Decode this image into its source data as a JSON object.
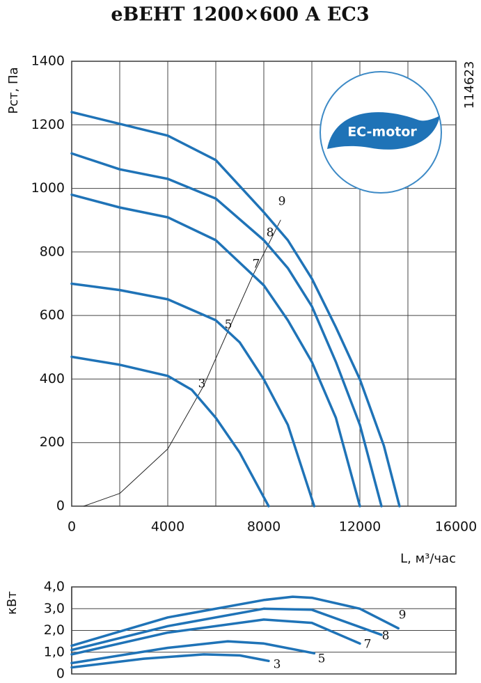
{
  "chart_data": [
    {
      "type": "line",
      "title": "eВЕНТ 1200×600 А ЕС3",
      "ylabel": "Pст, Па",
      "xlabel": "L, м³/час",
      "annotation": "114623",
      "badge": "EC-motor",
      "xlim": [
        0,
        16000
      ],
      "xticks": [
        0,
        4000,
        8000,
        12000,
        16000
      ],
      "x_minor_grid": [
        2000,
        6000,
        10000,
        14000
      ],
      "ylim": [
        0,
        1400
      ],
      "yticks": [
        0,
        200,
        400,
        600,
        800,
        1000,
        1200,
        1400
      ],
      "grid": true,
      "series": [
        {
          "name": "9",
          "color": "#1f73b7",
          "x": [
            0,
            4000,
            6000,
            8000,
            9000,
            10000,
            11000,
            12000,
            13000,
            13650
          ],
          "values": [
            1240,
            1166,
            1089,
            925,
            837,
            716,
            563,
            399,
            190,
            0
          ]
        },
        {
          "name": "8",
          "color": "#1f73b7",
          "x": [
            0,
            2000,
            4000,
            6000,
            8000,
            9000,
            10000,
            11000,
            12000,
            12900
          ],
          "values": [
            1110,
            1060,
            1030,
            968,
            837,
            749,
            629,
            454,
            256,
            0
          ]
        },
        {
          "name": "7",
          "color": "#1f73b7",
          "x": [
            0,
            2000,
            4000,
            6000,
            8000,
            9000,
            10000,
            11000,
            12000
          ],
          "values": [
            980,
            940,
            909,
            837,
            695,
            585,
            454,
            278,
            0
          ]
        },
        {
          "name": "5",
          "color": "#1f73b7",
          "x": [
            0,
            2000,
            4000,
            6000,
            7000,
            8000,
            9000,
            10100
          ],
          "values": [
            700,
            680,
            651,
            585,
            515,
            399,
            256,
            0
          ]
        },
        {
          "name": "3",
          "color": "#1f73b7",
          "x": [
            0,
            2000,
            4000,
            5000,
            6000,
            7000,
            8200
          ],
          "values": [
            470,
            445,
            410,
            366,
            278,
            168,
            0
          ]
        }
      ],
      "system_curve": {
        "color": "#222222",
        "x": [
          500,
          2000,
          4000,
          5500,
          6500,
          7500,
          8700
        ],
        "values": [
          0,
          40,
          180,
          380,
          550,
          720,
          900
        ]
      }
    },
    {
      "type": "line",
      "ylabel": "кВт",
      "xlim": [
        0,
        16000
      ],
      "ylim": [
        0,
        4
      ],
      "yticks": [
        0,
        {
          "value": 1,
          "label": "1,0"
        },
        {
          "value": 2,
          "label": "2,0"
        },
        {
          "value": 3,
          "label": "3,0"
        },
        {
          "value": 4,
          "label": "4,0"
        }
      ],
      "grid": true,
      "series": [
        {
          "name": "9",
          "color": "#1f73b7",
          "x": [
            0,
            4000,
            8000,
            9200,
            10000,
            12000,
            13600
          ],
          "values": [
            1.3,
            2.6,
            3.4,
            3.55,
            3.5,
            3.0,
            2.1
          ]
        },
        {
          "name": "8",
          "color": "#1f73b7",
          "x": [
            0,
            4000,
            8000,
            10000,
            12900
          ],
          "values": [
            1.1,
            2.2,
            3.0,
            2.95,
            1.8
          ]
        },
        {
          "name": "7",
          "color": "#1f73b7",
          "x": [
            0,
            4000,
            8000,
            10000,
            12000
          ],
          "values": [
            0.9,
            1.9,
            2.5,
            2.35,
            1.4
          ]
        },
        {
          "name": "5",
          "color": "#1f73b7",
          "x": [
            0,
            4000,
            6500,
            8000,
            10100
          ],
          "values": [
            0.5,
            1.2,
            1.5,
            1.4,
            0.95
          ]
        },
        {
          "name": "3",
          "color": "#1f73b7",
          "x": [
            0,
            3000,
            5500,
            7000,
            8200
          ],
          "values": [
            0.3,
            0.7,
            0.9,
            0.85,
            0.6
          ]
        }
      ]
    }
  ]
}
